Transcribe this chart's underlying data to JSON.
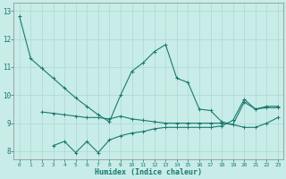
{
  "line1": {
    "x": [
      0,
      1,
      2,
      3,
      4,
      5,
      6,
      7,
      8,
      9,
      10,
      11,
      12,
      13,
      14,
      15,
      16,
      17,
      18,
      19,
      20,
      21,
      22,
      23
    ],
    "y": [
      12.8,
      11.3,
      10.95,
      10.6,
      10.25,
      9.9,
      9.6,
      9.3,
      9.05,
      10.0,
      10.85,
      11.15,
      11.55,
      11.8,
      10.6,
      10.45,
      9.5,
      9.45,
      9.05,
      8.95,
      9.75,
      9.5,
      9.55,
      9.55
    ]
  },
  "line2": {
    "x": [
      2,
      3,
      4,
      5,
      6,
      7,
      8,
      9,
      10,
      11,
      12,
      13,
      14,
      15,
      16,
      17,
      18,
      19,
      20,
      21,
      22,
      23
    ],
    "y": [
      9.4,
      9.35,
      9.3,
      9.25,
      9.2,
      9.2,
      9.15,
      9.25,
      9.15,
      9.1,
      9.05,
      9.0,
      9.0,
      9.0,
      9.0,
      9.0,
      9.0,
      8.95,
      8.85,
      8.85,
      9.0,
      9.2
    ]
  },
  "line3": {
    "x": [
      3,
      4,
      5,
      6,
      7,
      8,
      9,
      10,
      11,
      12,
      13,
      14,
      15,
      16,
      17,
      18,
      19,
      20,
      21,
      22,
      23
    ],
    "y": [
      8.2,
      8.35,
      7.95,
      8.35,
      7.95,
      8.4,
      8.55,
      8.65,
      8.7,
      8.8,
      8.85,
      8.85,
      8.85,
      8.85,
      8.85,
      8.9,
      9.1,
      9.85,
      9.5,
      9.6,
      9.6
    ]
  },
  "bg_color": "#c8ece8",
  "line_color": "#1a7a6e",
  "grid_color": "#aad8d0",
  "xlabel": "Humidex (Indice chaleur)",
  "xlim": [
    -0.5,
    23.5
  ],
  "ylim": [
    7.7,
    13.3
  ],
  "yticks": [
    8,
    9,
    10,
    11,
    12,
    13
  ],
  "xticks": [
    0,
    1,
    2,
    3,
    4,
    5,
    6,
    7,
    8,
    9,
    10,
    11,
    12,
    13,
    14,
    15,
    16,
    17,
    18,
    19,
    20,
    21,
    22,
    23
  ]
}
